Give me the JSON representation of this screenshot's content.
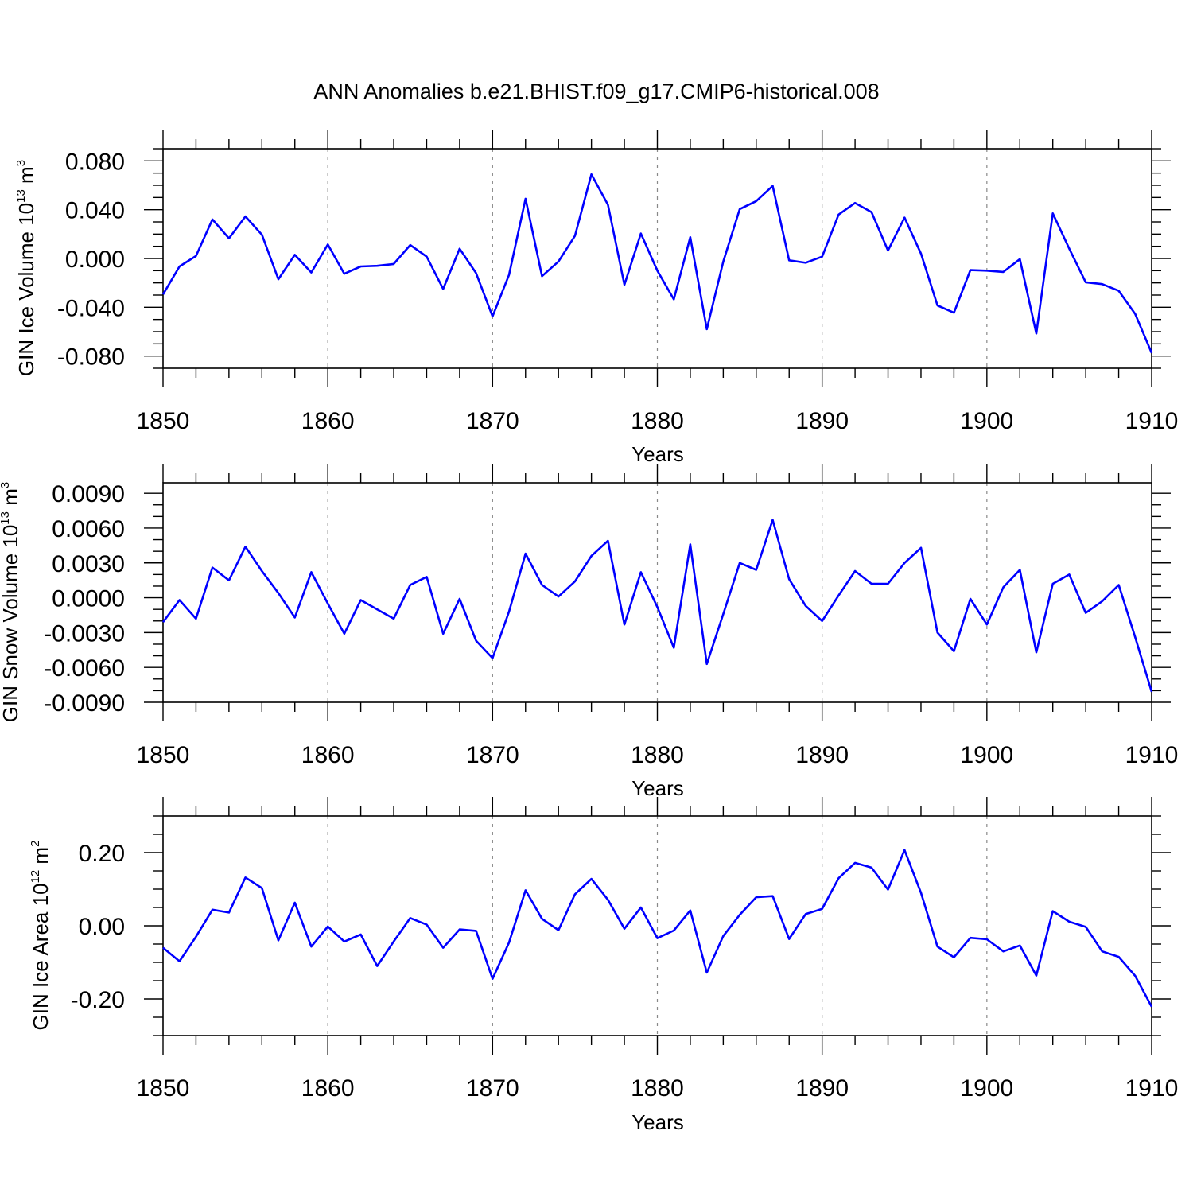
{
  "chart_data": {
    "title": "ANN Anomalies b.e21.BHIST.f09_g17.CMIP6-historical.008",
    "panels": [
      {
        "type": "line",
        "series_name": "GIN Ice Volume",
        "ylabel": "GIN Ice Volume 10",
        "ylabel_exponent": "13",
        "ylabel_unit": "m",
        "ylabel_unit_exponent": "3",
        "xlabel": "Years",
        "xlim": [
          1850,
          1910
        ],
        "ylim": [
          -0.09,
          0.09
        ],
        "x_ticks": [
          1850,
          1860,
          1870,
          1880,
          1890,
          1900,
          1910
        ],
        "x_tick_labels": [
          "1850",
          "1860",
          "1870",
          "1880",
          "1890",
          "1900",
          "1910"
        ],
        "y_ticks": [
          0.08,
          0.04,
          0.0,
          -0.04,
          -0.08
        ],
        "y_tick_labels": [
          "0.080",
          "0.040",
          "0.000",
          "-0.040",
          "-0.080"
        ],
        "y_minor_step": 0.01,
        "x_minor_step": 2,
        "grid": "vertical-dashed",
        "color": "#0000ff",
        "x_start": 1850,
        "values": [
          -0.0295,
          -0.0065,
          0.002,
          0.032,
          0.0165,
          0.0345,
          0.0195,
          -0.017,
          0.003,
          -0.0115,
          0.0115,
          -0.0125,
          -0.0065,
          -0.006,
          -0.0045,
          0.011,
          0.0015,
          -0.025,
          0.008,
          -0.012,
          -0.0475,
          -0.0135,
          0.049,
          -0.0145,
          -0.0025,
          0.0185,
          0.069,
          0.044,
          -0.0215,
          0.0205,
          -0.01,
          -0.0335,
          0.0175,
          -0.058,
          -0.0025,
          0.0405,
          0.047,
          0.0595,
          -0.0015,
          -0.0035,
          0.0015,
          0.036,
          0.0455,
          0.038,
          0.0065,
          0.0335,
          0.004,
          -0.0385,
          -0.0445,
          -0.0095,
          -0.01,
          -0.011,
          -0.0005,
          -0.0615,
          0.037,
          0.008,
          -0.0195,
          -0.021,
          -0.0265,
          -0.0455,
          -0.0775
        ]
      },
      {
        "type": "line",
        "series_name": "GIN Snow Volume",
        "ylabel": "GIN Snow Volume 10",
        "ylabel_exponent": "13",
        "ylabel_unit": "m",
        "ylabel_unit_exponent": "3",
        "xlabel": "Years",
        "xlim": [
          1850,
          1910
        ],
        "ylim": [
          -0.009,
          0.0099
        ],
        "x_ticks": [
          1850,
          1860,
          1870,
          1880,
          1890,
          1900,
          1910
        ],
        "x_tick_labels": [
          "1850",
          "1860",
          "1870",
          "1880",
          "1890",
          "1900",
          "1910"
        ],
        "y_ticks": [
          0.009,
          0.006,
          0.003,
          0.0,
          -0.003,
          -0.006,
          -0.009
        ],
        "y_tick_labels": [
          "0.0090",
          "0.0060",
          "0.0030",
          "0.0000",
          "-0.0030",
          "-0.0060",
          "-0.0090"
        ],
        "y_minor_step": 0.001,
        "x_minor_step": 2,
        "grid": "vertical-dashed",
        "color": "#0000ff",
        "x_start": 1850,
        "values": [
          -0.0021,
          -0.0002,
          -0.0018,
          0.0026,
          0.0015,
          0.0044,
          0.0023,
          0.0004,
          -0.0017,
          0.0022,
          -0.0005,
          -0.0031,
          -0.0002,
          -0.001,
          -0.0018,
          0.0011,
          0.0018,
          -0.0031,
          -0.0001,
          -0.0037,
          -0.0052,
          -0.0012,
          0.0038,
          0.0011,
          0.0001,
          0.0014,
          0.0036,
          0.0049,
          -0.0023,
          0.0022,
          -0.0008,
          -0.0043,
          0.0046,
          -0.0057,
          -0.0014,
          0.003,
          0.0024,
          0.0067,
          0.0016,
          -0.0007,
          -0.002,
          0.0002,
          0.0023,
          0.0012,
          0.0012,
          0.003,
          0.0043,
          -0.003,
          -0.0046,
          -0.0001,
          -0.0023,
          0.0009,
          0.0024,
          -0.0047,
          0.0012,
          0.002,
          -0.0013,
          -0.0003,
          0.0011,
          -0.0034,
          -0.0081
        ]
      },
      {
        "type": "line",
        "series_name": "GIN Ice Area",
        "ylabel": "GIN Ice Area 10",
        "ylabel_exponent": "12",
        "ylabel_unit": "m",
        "ylabel_unit_exponent": "2",
        "xlabel": "Years",
        "xlim": [
          1850,
          1910
        ],
        "ylim": [
          -0.3,
          0.3
        ],
        "x_ticks": [
          1850,
          1860,
          1870,
          1880,
          1890,
          1900,
          1910
        ],
        "x_tick_labels": [
          "1850",
          "1860",
          "1870",
          "1880",
          "1890",
          "1900",
          "1910"
        ],
        "y_ticks": [
          0.2,
          0.0,
          -0.2
        ],
        "y_tick_labels": [
          "0.20",
          "0.00",
          "-0.20"
        ],
        "y_minor_step": 0.05,
        "x_minor_step": 2,
        "grid": "vertical-dashed",
        "color": "#0000ff",
        "x_start": 1850,
        "values": [
          -0.06,
          -0.097,
          -0.03,
          0.044,
          0.036,
          0.132,
          0.103,
          -0.04,
          0.063,
          -0.057,
          -0.002,
          -0.043,
          -0.024,
          -0.11,
          -0.043,
          0.021,
          0.003,
          -0.06,
          -0.01,
          -0.014,
          -0.145,
          -0.046,
          0.097,
          0.019,
          -0.012,
          0.086,
          0.128,
          0.071,
          -0.008,
          0.05,
          -0.034,
          -0.013,
          0.042,
          -0.128,
          -0.028,
          0.03,
          0.078,
          0.081,
          -0.036,
          0.032,
          0.046,
          0.13,
          0.172,
          0.159,
          0.099,
          0.207,
          0.09,
          -0.057,
          -0.086,
          -0.033,
          -0.037,
          -0.07,
          -0.054,
          -0.136,
          0.04,
          0.011,
          -0.003,
          -0.07,
          -0.085,
          -0.137,
          -0.221
        ]
      }
    ]
  }
}
